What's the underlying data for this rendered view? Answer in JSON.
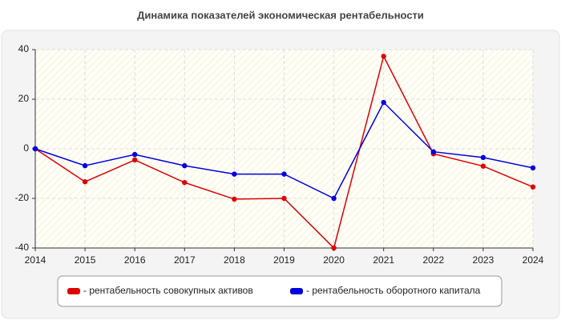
{
  "chart_data": {
    "type": "line",
    "title": "Динамика показателей экономическая рентабельности",
    "x": [
      2014,
      2015,
      2016,
      2017,
      2018,
      2019,
      2020,
      2021,
      2022,
      2023,
      2024
    ],
    "series": [
      {
        "name": "- рентабельность совокупных активов",
        "color": "#e00000",
        "values": [
          0,
          -13.3,
          -4.5,
          -13.6,
          -20.3,
          -20,
          -40,
          37.3,
          -2,
          -7,
          -15.4
        ]
      },
      {
        "name": "- рентабельность оборотного капитала",
        "color": "#0000e0",
        "values": [
          0,
          -6.8,
          -2.3,
          -6.8,
          -10.2,
          -10.2,
          -20,
          18.7,
          -1.2,
          -3.5,
          -7.7
        ]
      }
    ],
    "xlim": [
      2014,
      2024
    ],
    "xticks": [
      2014,
      2015,
      2016,
      2017,
      2018,
      2019,
      2020,
      2021,
      2022,
      2023,
      2024
    ],
    "ylim": [
      -40,
      40
    ],
    "yticks": [
      -40,
      -20,
      0,
      20,
      40
    ],
    "grid": true,
    "legend": "bottom"
  }
}
